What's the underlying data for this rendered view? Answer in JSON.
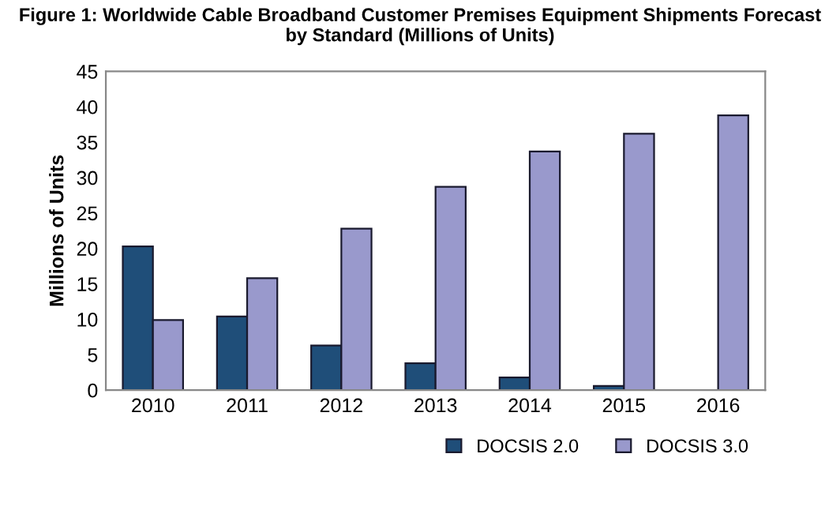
{
  "chart_data": {
    "type": "bar",
    "title": "Figure 1: Worldwide Cable Broadband Customer Premises Equipment Shipments Forecast\nby Standard (Millions of Units)",
    "ylabel": "Millions of Units",
    "categories": [
      "2010",
      "2011",
      "2012",
      "2013",
      "2014",
      "2015",
      "2016"
    ],
    "series": [
      {
        "name": "DOCSIS 2.0",
        "color": "#1f4e79",
        "values": [
          20.3,
          10.4,
          6.3,
          3.8,
          1.8,
          0.6,
          null
        ]
      },
      {
        "name": "DOCSIS 3.0",
        "color": "#9999cc",
        "values": [
          9.9,
          15.8,
          22.8,
          28.7,
          33.7,
          36.2,
          38.8
        ]
      }
    ],
    "ylim": [
      0,
      45
    ],
    "yticks": [
      0,
      5,
      10,
      15,
      20,
      25,
      30,
      35,
      40,
      45
    ],
    "grid": false,
    "legend": "bottom right"
  }
}
